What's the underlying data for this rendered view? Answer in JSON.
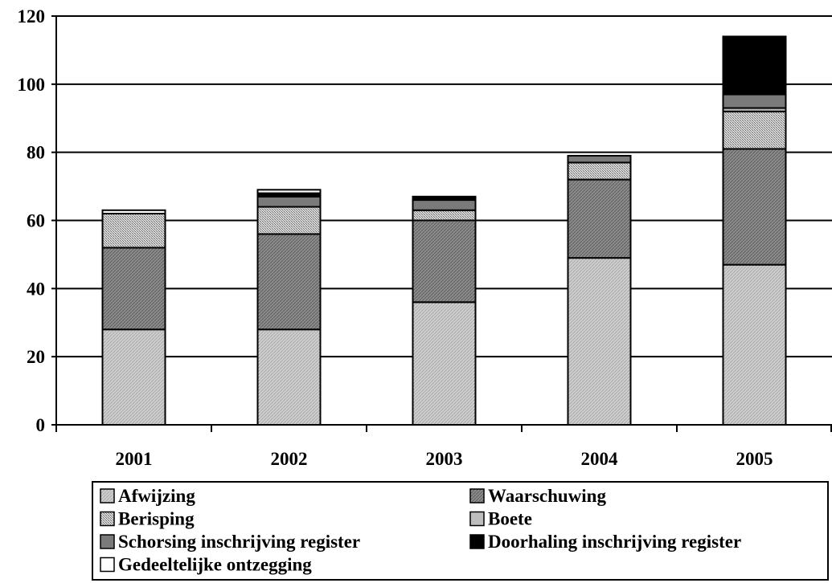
{
  "chart_data": {
    "type": "bar",
    "stacked": true,
    "categories": [
      "2001",
      "2002",
      "2003",
      "2004",
      "2005"
    ],
    "ylim": [
      0,
      120
    ],
    "yticks": [
      "0",
      "20",
      "40",
      "60",
      "80",
      "100",
      "120"
    ],
    "grid": true,
    "legend_position": "bottom",
    "series": [
      {
        "name": "Afwijzing",
        "values": [
          28,
          28,
          36,
          49,
          47
        ]
      },
      {
        "name": "Waarschuwing",
        "values": [
          24,
          28,
          24,
          23,
          34
        ]
      },
      {
        "name": "Berisping",
        "values": [
          10,
          8,
          3,
          5,
          11
        ]
      },
      {
        "name": "Boete",
        "values": [
          0,
          0,
          0,
          0,
          1
        ]
      },
      {
        "name": "Schorsing inschrijving register",
        "values": [
          0,
          3,
          3,
          2,
          4
        ]
      },
      {
        "name": "Doorhaling inschrijving register",
        "values": [
          0,
          1,
          1,
          0,
          17
        ]
      },
      {
        "name": "Gedeeltelijke ontzegging",
        "values": [
          1,
          1,
          0,
          0,
          0
        ]
      }
    ]
  }
}
